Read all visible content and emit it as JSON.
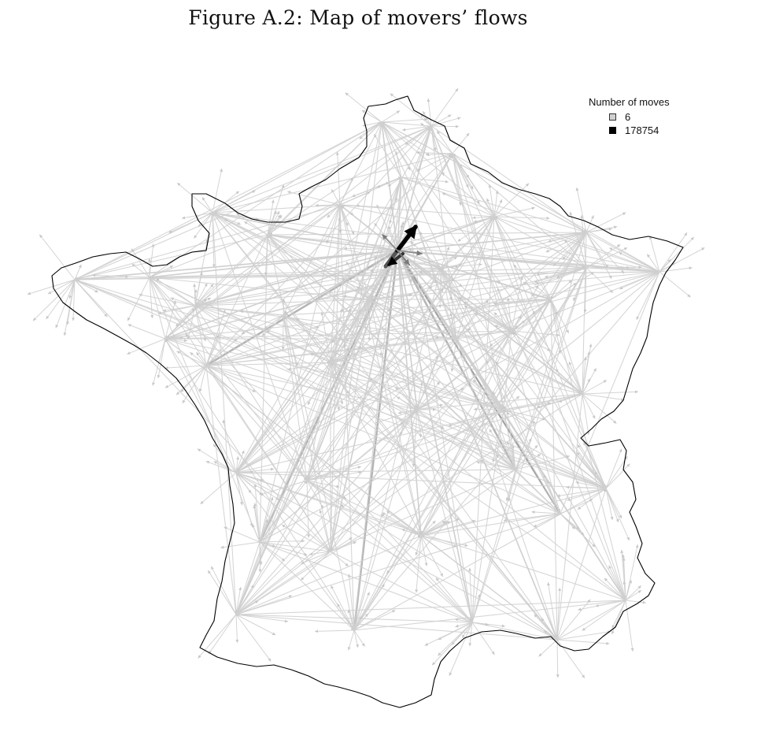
{
  "figure": {
    "title": "Figure A.2: Map of movers’ flows"
  },
  "legend": {
    "title": "Number of moves",
    "min_label": "6",
    "max_label": "178754",
    "min_color": "#d0d0d0",
    "max_color": "#000000"
  },
  "colors": {
    "background": "#ffffff",
    "border": "#000000",
    "flow_light": "#cfcfcf",
    "flow_dark": "#000000"
  }
}
